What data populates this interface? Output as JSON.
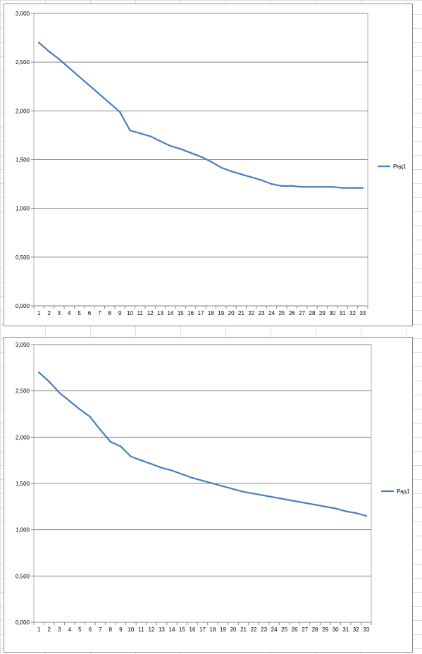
{
  "chart_data": [
    {
      "type": "line",
      "x": [
        "1",
        "2",
        "3",
        "4",
        "5",
        "6",
        "7",
        "8",
        "9",
        "10",
        "11",
        "12",
        "13",
        "14",
        "15",
        "16",
        "17",
        "18",
        "19",
        "20",
        "21",
        "22",
        "23",
        "24",
        "25",
        "26",
        "27",
        "28",
        "29",
        "30",
        "31",
        "32",
        "33"
      ],
      "series": [
        {
          "name": "Ряд1",
          "color": "#4a7ebb",
          "values": [
            2.7,
            2.61,
            2.53,
            2.44,
            2.35,
            2.26,
            2.17,
            2.08,
            1.99,
            1.8,
            1.77,
            1.74,
            1.69,
            1.64,
            1.61,
            1.57,
            1.53,
            1.48,
            1.42,
            1.38,
            1.35,
            1.32,
            1.29,
            1.25,
            1.23,
            1.23,
            1.22,
            1.22,
            1.22,
            1.22,
            1.21,
            1.21,
            1.21
          ]
        }
      ],
      "ylim": [
        0,
        3
      ],
      "yticks": [
        "0,000",
        "0,500",
        "1,000",
        "1,500",
        "2,000",
        "2,500",
        "3,000"
      ],
      "grid": true,
      "legend_position": "right"
    },
    {
      "type": "line",
      "x": [
        "1",
        "2",
        "3",
        "4",
        "5",
        "6",
        "7",
        "8",
        "9",
        "10",
        "11",
        "12",
        "13",
        "14",
        "15",
        "16",
        "17",
        "18",
        "19",
        "20",
        "21",
        "22",
        "23",
        "24",
        "25",
        "26",
        "27",
        "28",
        "29",
        "30",
        "31",
        "32",
        "33"
      ],
      "series": [
        {
          "name": "Ряд1",
          "color": "#4a7ebb",
          "values": [
            2.7,
            2.6,
            2.48,
            2.39,
            2.3,
            2.22,
            2.08,
            1.95,
            1.9,
            1.79,
            1.75,
            1.71,
            1.67,
            1.64,
            1.6,
            1.56,
            1.53,
            1.5,
            1.47,
            1.44,
            1.41,
            1.39,
            1.37,
            1.35,
            1.33,
            1.31,
            1.29,
            1.27,
            1.25,
            1.23,
            1.2,
            1.18,
            1.15
          ]
        }
      ],
      "ylim": [
        0,
        3
      ],
      "yticks": [
        "0,000",
        "0,500",
        "1,000",
        "1,500",
        "2,000",
        "2,500",
        "3,000"
      ],
      "grid": true,
      "legend_position": "right"
    }
  ]
}
